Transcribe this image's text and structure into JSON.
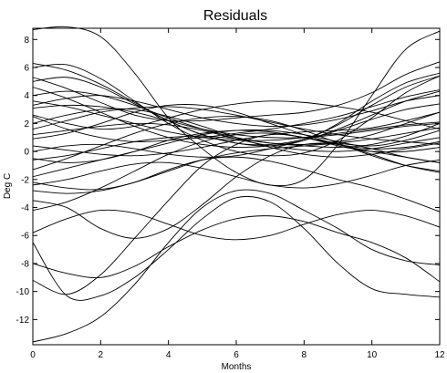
{
  "chart_data": {
    "type": "line",
    "title": "Residuals",
    "xlabel": "Months",
    "ylabel": "Deg C",
    "xlim": [
      0,
      12
    ],
    "ylim": [
      -13.8,
      8.8
    ],
    "xticks": [
      0,
      2,
      4,
      6,
      8,
      10,
      12
    ],
    "yticks": [
      -12,
      -10,
      -8,
      -6,
      -4,
      -2,
      0,
      2,
      4,
      6,
      8
    ],
    "grid": false,
    "line_color": "#000000",
    "x": [
      0,
      1,
      2,
      3,
      4,
      5,
      6,
      7,
      8,
      9,
      10,
      11,
      12
    ],
    "series": [
      {
        "values": [
          8.7,
          8.9,
          8.2,
          5.6,
          2.4,
          0.2,
          -1.5,
          -2.4,
          -2.0,
          0.5,
          4.0,
          7.3,
          8.6
        ]
      },
      {
        "values": [
          -13.6,
          -13.0,
          -11.8,
          -9.5,
          -6.5,
          -4.0,
          -2.8,
          -3.0,
          -4.2,
          -5.5,
          -7.0,
          -7.8,
          -8.1
        ]
      },
      {
        "values": [
          -6.5,
          -10.3,
          -10.3,
          -9.0,
          -7.0,
          -4.8,
          -3.3,
          -3.6,
          -5.5,
          -8.0,
          -9.8,
          -10.2,
          -10.4
        ]
      },
      {
        "values": [
          -9.2,
          -10.2,
          -8.8,
          -6.2,
          -3.5,
          -1.0,
          0.5,
          1.2,
          1.0,
          0.4,
          0.0,
          0.0,
          0.3
        ]
      },
      {
        "values": [
          -8.0,
          -8.7,
          -9.0,
          -8.2,
          -6.8,
          -5.6,
          -4.8,
          -4.6,
          -5.0,
          -5.8,
          -6.5,
          -7.6,
          -9.3
        ]
      },
      {
        "values": [
          -5.8,
          -4.8,
          -4.2,
          -4.4,
          -5.2,
          -6.0,
          -6.3,
          -6.0,
          -5.2,
          -4.5,
          -4.2,
          -4.6,
          -5.4
        ]
      },
      {
        "values": [
          -3.5,
          -4.0,
          -5.5,
          -6.2,
          -5.5,
          -3.8,
          -1.8,
          -0.3,
          0.5,
          0.5,
          -0.2,
          -1.0,
          -1.5
        ]
      },
      {
        "values": [
          -2.2,
          -2.6,
          -2.7,
          -2.2,
          -1.3,
          -0.6,
          -0.4,
          -0.7,
          -1.3,
          -2.0,
          -2.6,
          -3.4,
          -4.3
        ]
      },
      {
        "values": [
          -1.8,
          -1.2,
          -0.6,
          0.0,
          0.6,
          1.2,
          1.5,
          1.5,
          1.2,
          0.7,
          0.2,
          -0.4,
          -0.8
        ]
      },
      {
        "values": [
          -1.3,
          -0.5,
          0.4,
          1.3,
          2.0,
          2.4,
          2.5,
          2.2,
          1.5,
          0.6,
          -0.3,
          -1.0,
          -1.4
        ]
      },
      {
        "values": [
          -0.5,
          -0.8,
          -0.6,
          0.0,
          0.8,
          1.3,
          1.5,
          1.4,
          1.0,
          0.6,
          0.4,
          0.8,
          1.5
        ]
      },
      {
        "values": [
          0.0,
          0.4,
          0.5,
          0.2,
          -0.2,
          -0.4,
          -0.3,
          0.2,
          0.8,
          1.5,
          2.3,
          3.0,
          3.4
        ]
      },
      {
        "values": [
          0.4,
          0.1,
          -0.2,
          -0.3,
          -0.1,
          0.3,
          0.8,
          1.2,
          1.4,
          1.5,
          1.7,
          2.2,
          2.8
        ]
      },
      {
        "values": [
          1.2,
          1.5,
          1.8,
          2.0,
          1.9,
          1.5,
          0.9,
          0.4,
          0.1,
          0.0,
          0.2,
          0.6,
          1.0
        ]
      },
      {
        "values": [
          2.0,
          2.6,
          3.0,
          3.0,
          2.5,
          1.8,
          1.0,
          0.3,
          -0.2,
          -0.4,
          -0.2,
          0.2,
          0.6
        ]
      },
      {
        "values": [
          2.5,
          1.6,
          1.0,
          0.7,
          0.8,
          1.0,
          1.3,
          1.6,
          2.0,
          2.5,
          3.2,
          3.9,
          4.4
        ]
      },
      {
        "values": [
          3.1,
          3.3,
          3.2,
          2.8,
          2.2,
          1.6,
          1.2,
          1.0,
          1.0,
          1.2,
          1.5,
          1.8,
          2.0
        ]
      },
      {
        "values": [
          3.6,
          3.2,
          2.6,
          2.0,
          1.4,
          1.0,
          0.8,
          0.8,
          1.0,
          1.3,
          1.6,
          1.9,
          2.1
        ]
      },
      {
        "values": [
          4.0,
          4.3,
          4.0,
          3.3,
          2.4,
          1.6,
          1.0,
          0.6,
          0.5,
          0.7,
          1.2,
          2.0,
          2.8
        ]
      },
      {
        "values": [
          4.6,
          3.8,
          2.8,
          1.8,
          1.0,
          0.5,
          0.3,
          0.4,
          0.8,
          1.6,
          2.6,
          3.6,
          4.3
        ]
      },
      {
        "values": [
          5.0,
          5.3,
          4.6,
          3.4,
          2.2,
          1.2,
          0.6,
          0.5,
          0.9,
          1.9,
          3.3,
          4.6,
          5.4
        ]
      },
      {
        "values": [
          5.3,
          4.5,
          3.5,
          2.6,
          2.2,
          2.2,
          2.4,
          2.6,
          2.8,
          3.3,
          4.2,
          5.5,
          6.4
        ]
      },
      {
        "values": [
          6.0,
          6.2,
          5.2,
          3.6,
          2.0,
          0.8,
          0.0,
          -0.3,
          -0.1,
          0.8,
          2.4,
          4.2,
          5.4
        ]
      },
      {
        "values": [
          6.3,
          5.8,
          4.8,
          3.5,
          2.2,
          1.2,
          0.6,
          0.4,
          0.8,
          2.0,
          3.6,
          4.9,
          5.6
        ]
      },
      {
        "values": [
          2.6,
          2.0,
          1.6,
          1.8,
          2.4,
          3.0,
          3.4,
          3.6,
          3.5,
          3.2,
          2.8,
          2.2,
          1.6
        ]
      },
      {
        "values": [
          1.6,
          2.2,
          2.8,
          3.1,
          3.2,
          3.0,
          2.6,
          2.1,
          1.6,
          1.2,
          0.9,
          0.7,
          0.5
        ]
      },
      {
        "values": [
          0.9,
          1.3,
          2.0,
          2.8,
          3.3,
          3.3,
          2.8,
          2.0,
          1.2,
          0.5,
          0.0,
          -0.4,
          -0.8
        ]
      },
      {
        "values": [
          -2.8,
          -3.0,
          -2.8,
          -2.2,
          -1.4,
          -0.6,
          -0.1,
          0.2,
          0.4,
          0.6,
          0.9,
          1.3,
          1.7
        ]
      },
      {
        "values": [
          -0.6,
          -0.3,
          0.2,
          0.7,
          1.0,
          1.1,
          0.9,
          0.6,
          0.4,
          0.3,
          0.5,
          1.1,
          2.0
        ]
      },
      {
        "values": [
          -4.2,
          -3.6,
          -2.6,
          -1.4,
          -0.2,
          0.7,
          1.2,
          1.3,
          1.0,
          0.5,
          0.2,
          0.3,
          0.7
        ]
      },
      {
        "values": [
          3.3,
          3.8,
          4.0,
          3.6,
          3.0,
          2.4,
          2.0,
          1.8,
          1.9,
          2.3,
          2.9,
          3.6,
          4.0
        ]
      },
      {
        "values": [
          -2.4,
          -2.0,
          -1.4,
          -0.9,
          -0.8,
          -1.2,
          -1.8,
          -2.4,
          -2.6,
          -2.3,
          -1.7,
          -1.0,
          -0.6
        ]
      }
    ]
  }
}
